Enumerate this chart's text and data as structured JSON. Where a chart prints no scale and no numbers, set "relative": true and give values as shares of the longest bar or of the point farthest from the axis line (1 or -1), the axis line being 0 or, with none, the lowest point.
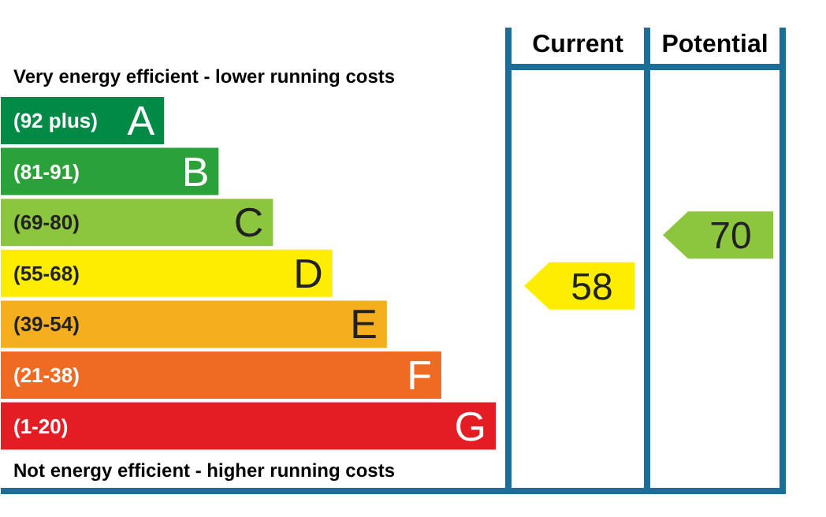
{
  "chart_data": {
    "type": "bar",
    "orientation": "horizontal",
    "relative": true,
    "categories": [
      "(92 plus)",
      "(81-91)",
      "(69-80)",
      "(55-68)",
      "(39-54)",
      "(21-38)",
      "(1-20)"
    ],
    "values": [
      0.33,
      0.44,
      0.55,
      0.67,
      0.78,
      0.89,
      1
    ],
    "colors": [
      "#008a45",
      "#2ba13a",
      "#8cc63f",
      "#ffed00",
      "#f5ae1e",
      "#ef6a22",
      "#e31d23"
    ],
    "annotations": [
      "Very energy efficient - lower running costs",
      "Not energy efficient - higher running costs",
      "Current",
      "Potential",
      "58",
      "70",
      {
        "text": "A",
        "x": 0.33,
        "y": "(92 plus)"
      },
      {
        "text": "B",
        "x": 0.44,
        "y": "(81-91)"
      },
      {
        "text": "C",
        "x": 0.55,
        "y": "(69-80)"
      },
      {
        "text": "D",
        "x": 0.67,
        "y": "(55-68)"
      },
      {
        "text": "E",
        "x": 0.78,
        "y": "(39-54)"
      },
      {
        "text": "F",
        "x": 0.89,
        "y": "(21-38)"
      },
      {
        "text": "G",
        "x": 1,
        "y": "(1-20)"
      }
    ]
  }
}
